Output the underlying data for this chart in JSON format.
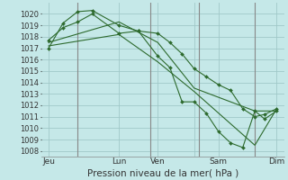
{
  "title": "Pression niveau de la mer( hPa )",
  "bg_color": "#c5e8e8",
  "grid_color": "#a0c8c8",
  "line_color": "#2d6a2d",
  "vline_color": "#888888",
  "ylim": [
    1007.5,
    1021.0
  ],
  "yticks": [
    1008,
    1009,
    1010,
    1011,
    1012,
    1013,
    1014,
    1015,
    1016,
    1017,
    1018,
    1019,
    1020
  ],
  "xlim": [
    0,
    10.0
  ],
  "xtick_labels": [
    "Jeu",
    "",
    "Lun",
    "Ven",
    "",
    "Sam",
    "",
    "Dim"
  ],
  "xtick_positions": [
    0.3,
    1.5,
    3.2,
    4.8,
    6.3,
    7.3,
    8.8,
    9.7
  ],
  "vlines": [
    1.5,
    4.5,
    6.5,
    8.8
  ],
  "series": [
    {
      "x": [
        0.3,
        0.9,
        1.5,
        2.1,
        3.2,
        4.0,
        4.8,
        5.3,
        5.8,
        6.3,
        6.8,
        7.3,
        7.8,
        8.3,
        8.8,
        9.2,
        9.7
      ],
      "y": [
        1017.0,
        1019.2,
        1020.2,
        1020.3,
        1019.0,
        1018.5,
        1018.3,
        1017.5,
        1016.5,
        1015.2,
        1014.5,
        1013.8,
        1013.3,
        1011.7,
        1011.0,
        1011.2,
        1011.7
      ],
      "marker": true
    },
    {
      "x": [
        0.3,
        0.9,
        1.5,
        2.1,
        3.2,
        4.0,
        4.8,
        5.3,
        5.8,
        6.3,
        6.8,
        7.3,
        7.8,
        8.3,
        8.8,
        9.2,
        9.7
      ],
      "y": [
        1017.7,
        1018.8,
        1019.3,
        1020.0,
        1018.3,
        1018.5,
        1016.3,
        1015.3,
        1012.3,
        1012.3,
        1011.3,
        1009.7,
        1008.7,
        1008.3,
        1011.5,
        1010.8,
        1011.5
      ],
      "marker": true
    },
    {
      "x": [
        0.3,
        3.2,
        4.8,
        6.3,
        8.8,
        9.7
      ],
      "y": [
        1017.2,
        1018.2,
        1015.8,
        1013.2,
        1008.5,
        1011.7
      ],
      "marker": false
    },
    {
      "x": [
        0.3,
        3.2,
        4.8,
        6.3,
        8.8,
        9.7
      ],
      "y": [
        1017.5,
        1019.3,
        1017.5,
        1013.5,
        1011.5,
        1011.5
      ],
      "marker": false
    }
  ]
}
